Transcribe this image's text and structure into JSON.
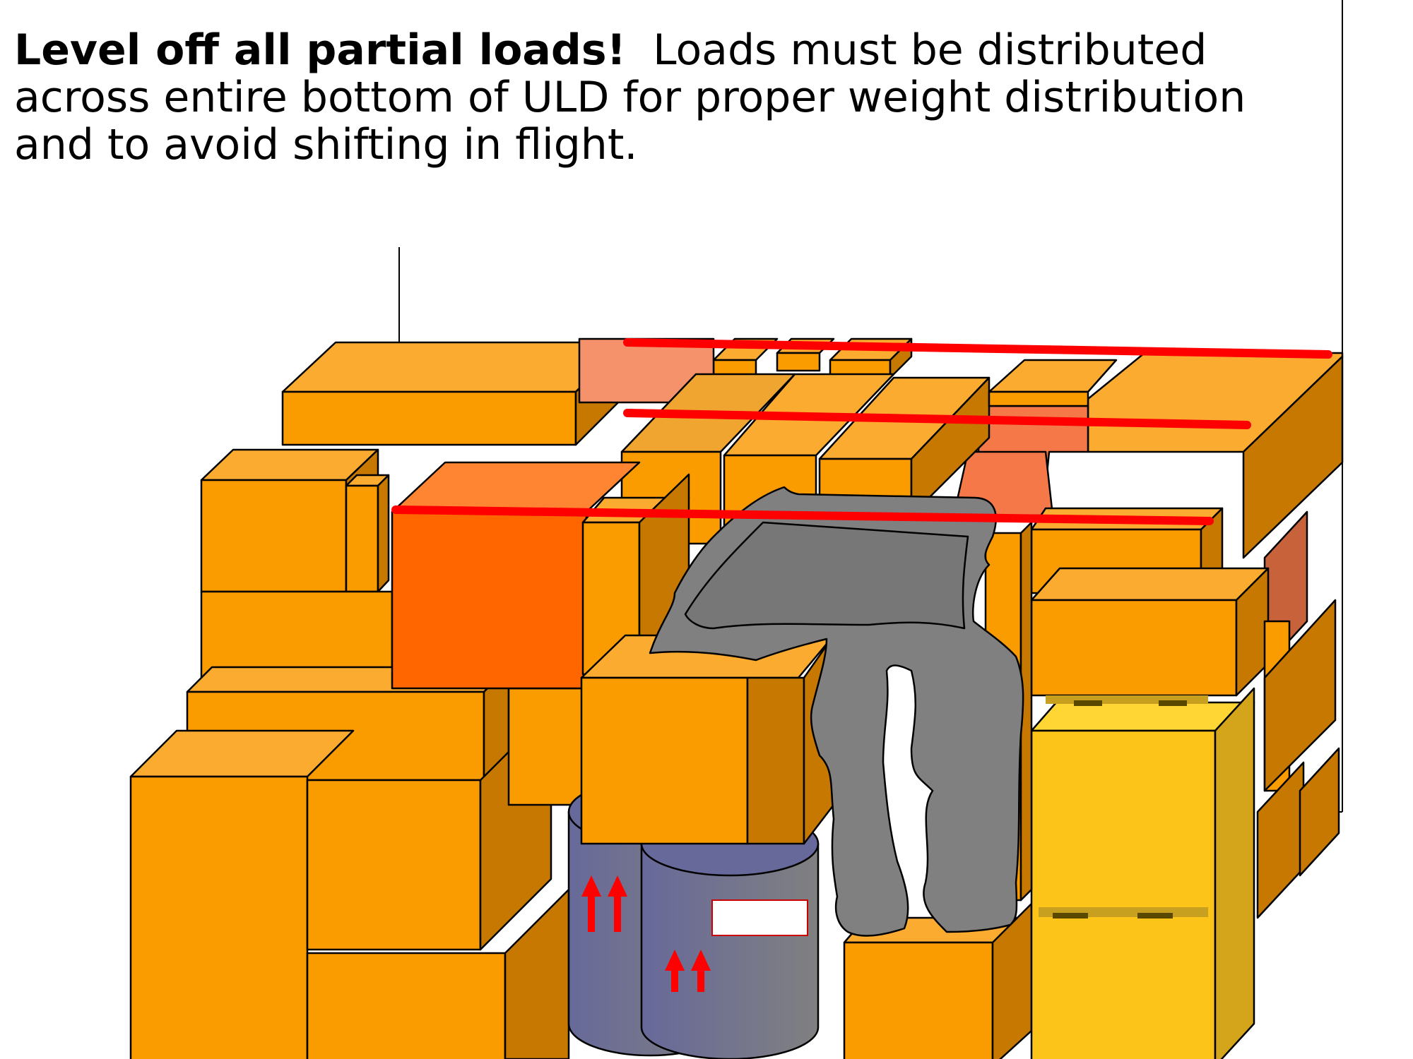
{
  "instruction": {
    "headline": "Level off all partial loads!",
    "body": "Loads must be distributed across entire bottom of ULD for proper weight distribution and to avoid shifting in flight."
  },
  "colors": {
    "box_front": "#fa9b00",
    "box_top": "#fbab30",
    "box_side": "#c77800",
    "highlight_box": "#ff6600",
    "level_line": "#ff0000",
    "bag": "#808080",
    "drum": "#67699a",
    "yellow_box": "#fcc419",
    "arrow": "#ff0000"
  },
  "icons": {
    "this_way_up": "this-way-up-arrows-icon",
    "label": "blank-label-icon"
  }
}
